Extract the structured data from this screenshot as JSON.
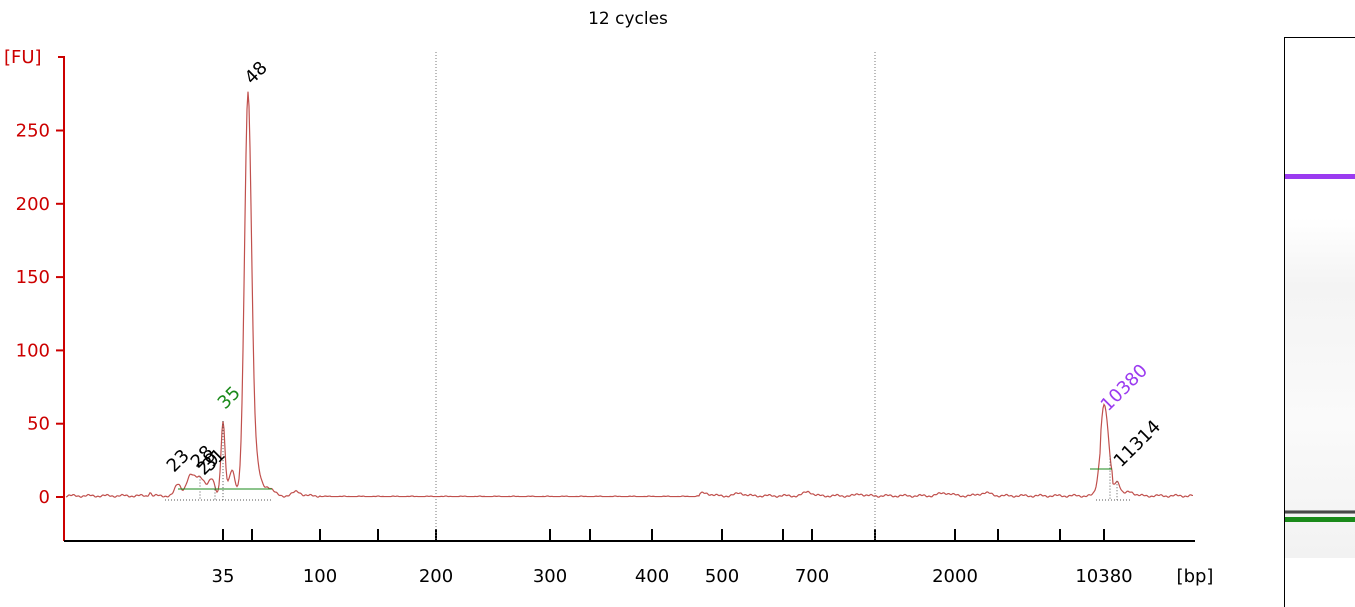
{
  "chart_data": {
    "type": "line",
    "title": "12 cycles",
    "ylabel": "[FU]",
    "xlabel": "[bp]",
    "ylim": [
      -30,
      290
    ],
    "yticks": [
      0,
      50,
      100,
      150,
      200,
      250
    ],
    "xticks": [
      "35",
      "100",
      "200",
      "300",
      "400",
      "500",
      "700",
      "2000",
      "10380"
    ],
    "grid": "dotted vertical lines at 200 and 1000",
    "colors": {
      "trace": "#c0504d",
      "axis": "#cc0000",
      "lower_marker": "#1a8a1a",
      "upper_marker": "#9b3bf0"
    },
    "peaks": [
      {
        "label": "23",
        "size_bp": 23,
        "fu": 8
      },
      {
        "label": "28",
        "size_bp": 28,
        "fu": 14
      },
      {
        "label": "29",
        "size_bp": 29,
        "fu": 12
      },
      {
        "label": "31",
        "size_bp": 31,
        "fu": 10
      },
      {
        "label": "35",
        "size_bp": 35,
        "fu": 52,
        "marker": "lower"
      },
      {
        "label": "48",
        "size_bp": 48,
        "fu": 275
      },
      {
        "label": "10380",
        "size_bp": 10380,
        "fu": 50,
        "marker": "upper"
      },
      {
        "label": "11314",
        "size_bp": 11314,
        "fu": 12
      }
    ]
  },
  "gel": {
    "colors": {
      "upper_band": "#9b3bf0",
      "lower_band": "#1a8a1a",
      "sample_band": "#222222"
    }
  }
}
